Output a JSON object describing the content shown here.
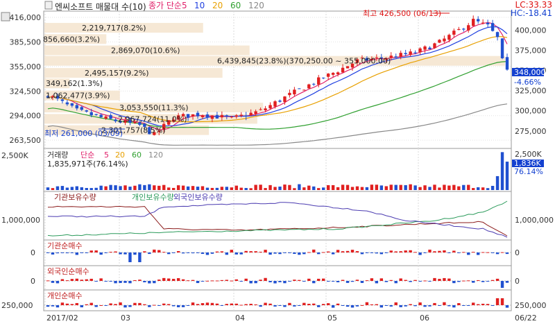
{
  "header": {
    "title": "엔씨소프트 매물대 수(10)",
    "price_indicator": {
      "name": "종가 단순",
      "periods": [
        "5",
        "10",
        "20",
        "60",
        "120"
      ]
    },
    "lc": "LC:33.33",
    "hc": "HC:-18.41"
  },
  "colors": {
    "ma5": "#e0206a",
    "ma10": "#2040e0",
    "ma20": "#e8a000",
    "ma60": "#30a030",
    "ma120": "#888888",
    "up": "#e02020",
    "down": "#2050d0",
    "zone": "#f5e6d0"
  },
  "chart_data": [
    {
      "type": "candlestick",
      "panel": "price",
      "x_range": [
        "2017/02",
        "06/22"
      ],
      "month_labels": [
        "2017/02",
        "03",
        "04",
        "05",
        "06",
        "06/22"
      ],
      "y_ticks_left": [
        "416,000",
        "385,500",
        "355,000",
        "324,500",
        "294,000",
        "263,500"
      ],
      "y_ticks_right": [
        "400,000",
        "375,000",
        "350,000",
        "325,000",
        "300,000",
        "275,000"
      ],
      "ylim": [
        255000,
        422000
      ],
      "current_price": "348,000",
      "current_change": "-4.66%",
      "high_note": "최고 426,500 (06/13)",
      "low_note": "최저 261,000 (03/09)",
      "volume_profile": [
        {
          "label": "2,219,717(8.2%)",
          "price": 403000,
          "pct": 8.2
        },
        {
          "label": "856,660(3.2%)",
          "price": 389000,
          "pct": 3.2
        },
        {
          "label": "2,869,070(10.6%)",
          "price": 375000,
          "pct": 10.6
        },
        {
          "label": "6,439,845(23.8%)(370,250.00 ~ 355,000.00)",
          "price": 362000,
          "pct": 23.8
        },
        {
          "label": "2,495,157(9.2%)",
          "price": 347000,
          "pct": 9.2
        },
        {
          "label": "349,162(1.3%)",
          "price": 334000,
          "pct": 1.3
        },
        {
          "label": "1,062,477(3.9%)",
          "price": 319000,
          "pct": 3.9
        },
        {
          "label": "3,053,550(11.3%)",
          "price": 304000,
          "pct": 11.3
        },
        {
          "label": "2,967,724(11.0%)",
          "price": 290000,
          "pct": 11.0
        },
        {
          "label": "2,301,757(8.5%)",
          "price": 276000,
          "pct": 8.5
        }
      ]
    },
    {
      "type": "bar",
      "panel": "volume",
      "title": "거래량",
      "indicator": "단순",
      "periods": [
        "5",
        "20",
        "60",
        "120"
      ],
      "note": "1,835,971주(76.14%)",
      "y_ticks_left": [
        "2,500K"
      ],
      "y_ticks_right": [
        "2,500K"
      ],
      "current_value": "1,836K",
      "current_pct": "76.14%",
      "ylim": [
        0,
        2600
      ]
    },
    {
      "type": "line",
      "panel": "holdings",
      "series_names": [
        "기관보유수량",
        "개인보유수량",
        "외국인보유수량"
      ],
      "y_ticks_left": [
        "1,000,000"
      ],
      "y_ticks_right": [
        "1,000,000"
      ]
    },
    {
      "type": "bar",
      "panel": "inst_net",
      "title": "기관순매수",
      "y_ticks_left": [
        "0"
      ],
      "y_ticks_right": [
        "0"
      ]
    },
    {
      "type": "bar",
      "panel": "foreign_net",
      "title": "외국인순매수",
      "y_ticks_left": [
        "0"
      ],
      "y_ticks_right": [
        "0"
      ]
    },
    {
      "type": "bar",
      "panel": "indiv_net",
      "title": "개인순매수",
      "y_ticks_left": [
        "250,000"
      ],
      "y_ticks_right": [
        "250,000"
      ]
    }
  ]
}
